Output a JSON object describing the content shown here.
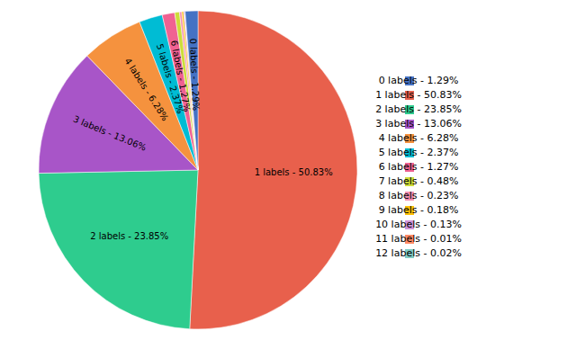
{
  "chart_data": {
    "type": "pie",
    "categories": [
      "1 labels",
      "2 labels",
      "3 labels",
      "4 labels",
      "5 labels",
      "6 labels",
      "7 labels",
      "8 labels",
      "9 labels",
      "10 labels",
      "11 labels",
      "12 labels",
      "0 labels"
    ],
    "values": [
      50.83,
      23.85,
      13.06,
      6.28,
      2.37,
      1.27,
      0.48,
      0.23,
      0.18,
      0.13,
      0.01,
      0.02,
      1.29
    ],
    "colors": [
      "#e8604c",
      "#2ecc8e",
      "#a855c8",
      "#f5923e",
      "#00bcd4",
      "#f06292",
      "#cddc39",
      "#f48fb1",
      "#ffc107",
      "#ce93d8",
      "#ff8a65",
      "#80cbc4",
      "#4472c4"
    ],
    "value_labels": [
      "1 labels - 50.83%",
      "2 labels - 23.85%",
      "3 labels - 13.06%",
      "4 labels - 6.28%",
      "5 labels - 2.37%",
      "6 labels - 1.27%",
      null,
      null,
      null,
      null,
      null,
      null,
      "0 labels - 1.29%"
    ],
    "data_labels": true,
    "legend": "right",
    "legend_labels": [
      "0 labels - 1.29%",
      "1 labels - 50.83%",
      "2 labels - 23.85%",
      "3 labels - 13.06%",
      "4 labels - 6.28%",
      "5 labels - 2.37%",
      "6 labels - 1.27%",
      "7 labels - 0.48%",
      "8 labels - 0.23%",
      "9 labels - 0.18%",
      "10 labels - 0.13%",
      "11 labels - 0.01%",
      "12 labels - 0.02%"
    ],
    "legend_colors": [
      "#4472c4",
      "#e8604c",
      "#2ecc8e",
      "#a855c8",
      "#f5923e",
      "#00bcd4",
      "#f06292",
      "#cddc39",
      "#f48fb1",
      "#ffc107",
      "#ce93d8",
      "#ff8a65",
      "#80cbc4"
    ]
  }
}
